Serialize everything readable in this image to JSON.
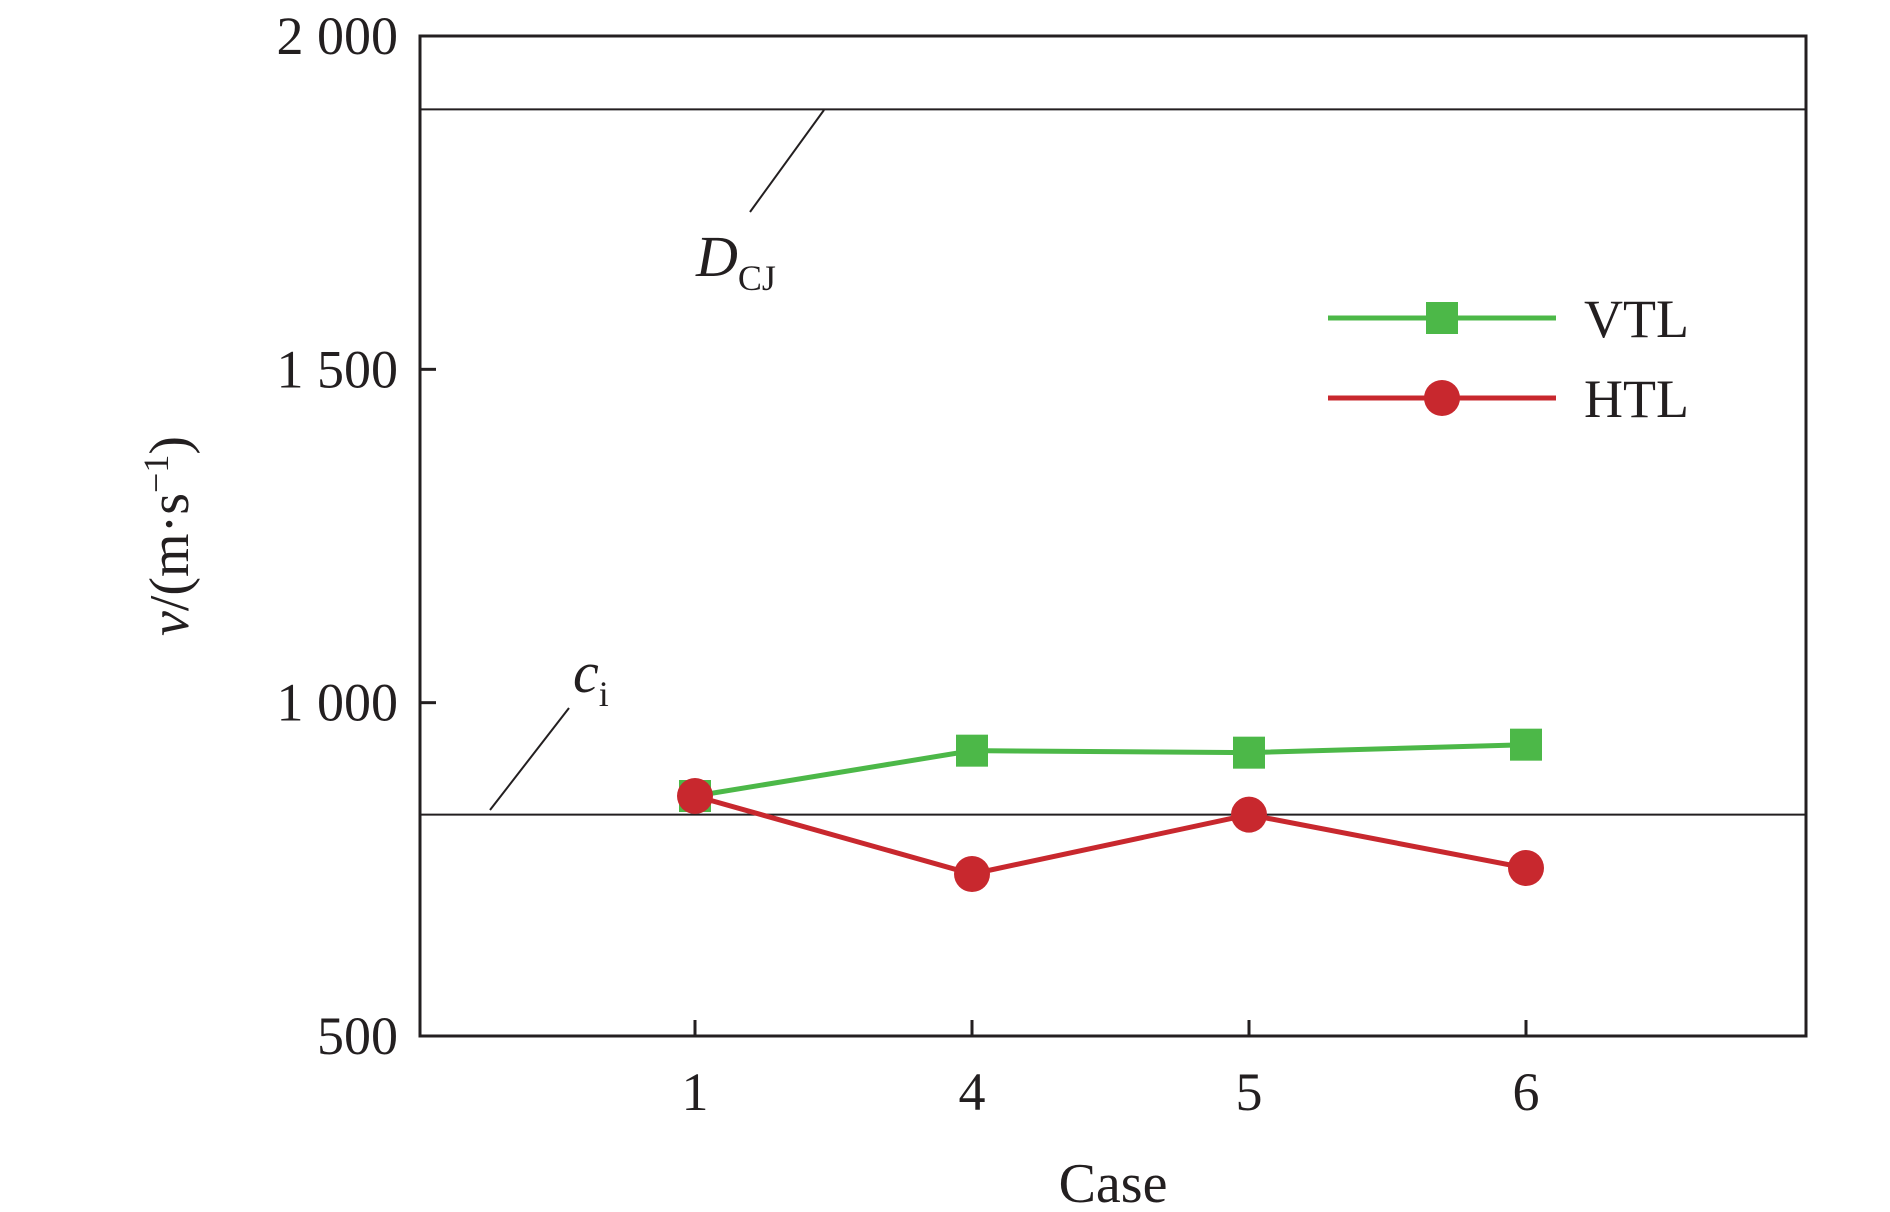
{
  "chart_data": {
    "type": "line",
    "xlabel": "Case",
    "ylabel": {
      "var": "v",
      "unit": "/(m·s",
      "exp": "−1",
      "close": ")"
    },
    "categories": [
      "1",
      "4",
      "5",
      "6"
    ],
    "ylim": [
      500,
      2000
    ],
    "yticks": [
      500,
      1000,
      1500,
      2000
    ],
    "ytick_labels": [
      "500",
      "1 000",
      "1 500",
      "2 000"
    ],
    "grid": false,
    "legend_position": "top-right",
    "series": [
      {
        "name": "VTL",
        "color": "#4cb848",
        "marker": "square",
        "values": [
          860,
          928,
          925,
          937
        ]
      },
      {
        "name": "HTL",
        "color": "#c8282e",
        "marker": "circle",
        "values": [
          860,
          743,
          832,
          752
        ]
      }
    ],
    "reference_lines": [
      {
        "main": "D",
        "sub": "CJ",
        "value": 1890
      },
      {
        "main": "c",
        "sub": "i",
        "value": 832
      }
    ]
  }
}
